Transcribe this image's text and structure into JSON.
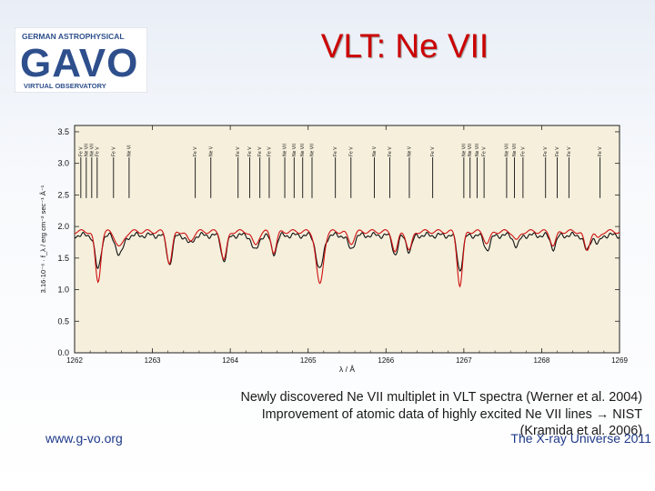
{
  "slide": {
    "title": "VLT: Ne VII",
    "logo": {
      "line1": "GERMAN ASTROPHYSICAL",
      "main": "GAVO",
      "line2": "VIRTUAL OBSERVATORY",
      "accent": "#2e4f8c"
    },
    "caption": [
      "Newly discovered Ne VII multiplet in VLT spectra (Werner et al. 2004)",
      "Improvement of atomic data of highly excited Ne VII lines → NIST",
      "(Kramida et al. 2006)"
    ],
    "footer_left": "www.g-vo.org",
    "footer_right": "The X-ray Universe 2011"
  },
  "chart_data": {
    "type": "line",
    "xlabel": "λ / Å",
    "ylabel": "3.16·10⁻⁸ · f_λ / erg cm⁻² sec⁻¹ Å⁻¹",
    "xlim": [
      1262,
      1269
    ],
    "ylim": [
      0,
      3.6
    ],
    "xticks": [
      "1262",
      "1263",
      "1264",
      "1265",
      "1266",
      "1267",
      "1268",
      "1269"
    ],
    "yticks": [
      "0.0",
      "0.5",
      "1.0",
      "1.5",
      "2.0",
      "2.5",
      "3.0",
      "3.5"
    ],
    "background": "#f5efdc",
    "series": [
      {
        "name": "",
        "color": "#111111",
        "continuum": 1.86,
        "absorptions": [
          [
            1262.3,
            0.55,
            0.035
          ],
          [
            1262.58,
            0.3,
            0.05
          ],
          [
            1263.22,
            0.45,
            0.035
          ],
          [
            1263.48,
            0.14,
            0.04
          ],
          [
            1263.92,
            0.4,
            0.035
          ],
          [
            1264.32,
            0.25,
            0.04
          ],
          [
            1264.56,
            0.28,
            0.035
          ],
          [
            1265.15,
            0.55,
            0.045
          ],
          [
            1265.55,
            0.22,
            0.04
          ],
          [
            1266.12,
            0.3,
            0.035
          ],
          [
            1266.3,
            0.25,
            0.035
          ],
          [
            1266.95,
            0.55,
            0.035
          ],
          [
            1267.3,
            0.22,
            0.04
          ],
          [
            1267.68,
            0.18,
            0.035
          ],
          [
            1268.15,
            0.2,
            0.035
          ],
          [
            1268.58,
            0.25,
            0.035
          ],
          [
            1268.72,
            0.15,
            0.03
          ]
        ]
      },
      {
        "name": "",
        "color": "#d01010",
        "continuum": 1.92,
        "absorptions": [
          [
            1262.3,
            0.8,
            0.035
          ],
          [
            1262.58,
            0.25,
            0.05
          ],
          [
            1263.22,
            0.5,
            0.035
          ],
          [
            1263.48,
            0.15,
            0.04
          ],
          [
            1263.92,
            0.45,
            0.035
          ],
          [
            1264.32,
            0.22,
            0.04
          ],
          [
            1264.56,
            0.32,
            0.035
          ],
          [
            1265.15,
            0.85,
            0.045
          ],
          [
            1265.55,
            0.18,
            0.04
          ],
          [
            1266.12,
            0.32,
            0.035
          ],
          [
            1266.3,
            0.3,
            0.035
          ],
          [
            1266.95,
            0.85,
            0.035
          ],
          [
            1267.3,
            0.18,
            0.04
          ],
          [
            1267.68,
            0.15,
            0.035
          ],
          [
            1268.15,
            0.22,
            0.035
          ],
          [
            1268.58,
            0.3,
            0.035
          ],
          [
            1268.72,
            0.12,
            0.03
          ]
        ]
      }
    ],
    "line_ids": [
      {
        "x": 1262.08,
        "label": "Fe V"
      },
      {
        "x": 1262.15,
        "label": "Ne VII"
      },
      {
        "x": 1262.22,
        "label": "Ne VII"
      },
      {
        "x": 1262.29,
        "label": "Fe V"
      },
      {
        "x": 1262.5,
        "label": "Fe V"
      },
      {
        "x": 1262.7,
        "label": "Ne VI"
      },
      {
        "x": 1263.55,
        "label": "Fe V"
      },
      {
        "x": 1263.75,
        "label": "Ne V"
      },
      {
        "x": 1264.1,
        "label": "Fe V"
      },
      {
        "x": 1264.25,
        "label": "Fe V"
      },
      {
        "x": 1264.38,
        "label": "Fe V"
      },
      {
        "x": 1264.5,
        "label": "Fe V"
      },
      {
        "x": 1264.7,
        "label": "Ne VII"
      },
      {
        "x": 1264.82,
        "label": "Ne VII"
      },
      {
        "x": 1264.93,
        "label": "Ne VII"
      },
      {
        "x": 1265.05,
        "label": "Ne VII"
      },
      {
        "x": 1265.35,
        "label": "Fe V"
      },
      {
        "x": 1265.55,
        "label": "Fe V"
      },
      {
        "x": 1265.85,
        "label": "Ne V"
      },
      {
        "x": 1266.05,
        "label": "Fe V"
      },
      {
        "x": 1266.3,
        "label": "Ne V"
      },
      {
        "x": 1266.6,
        "label": "Fe V"
      },
      {
        "x": 1267.0,
        "label": "Ne VII"
      },
      {
        "x": 1267.08,
        "label": "Ne VII"
      },
      {
        "x": 1267.17,
        "label": "Ne VII"
      },
      {
        "x": 1267.26,
        "label": "Fe V"
      },
      {
        "x": 1267.55,
        "label": "Ne VII"
      },
      {
        "x": 1267.65,
        "label": "Ne VII"
      },
      {
        "x": 1267.76,
        "label": "Fe V"
      },
      {
        "x": 1268.05,
        "label": "Fe V"
      },
      {
        "x": 1268.2,
        "label": "Fe V"
      },
      {
        "x": 1268.35,
        "label": "Fe V"
      },
      {
        "x": 1268.75,
        "label": "Fe V"
      }
    ]
  }
}
